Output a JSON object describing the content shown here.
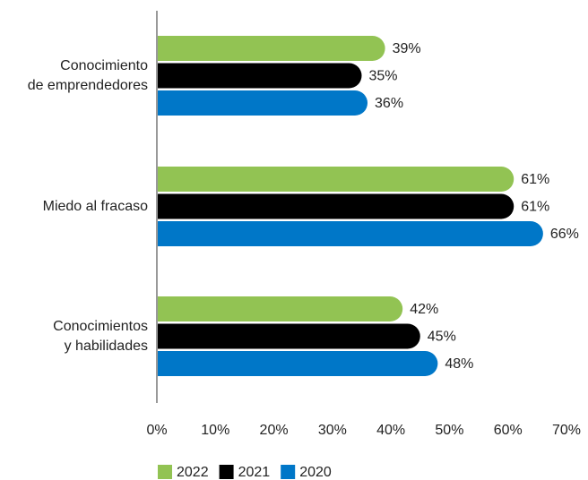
{
  "chart_data": {
    "type": "hbar",
    "categories": [
      "Conocimiento\nde emprendedores",
      "Miedo al fracaso",
      "Conocimientos\ny habilidades"
    ],
    "series": [
      {
        "name": "2022",
        "color": "#92c353",
        "values": [
          39,
          61,
          42
        ],
        "value_labels": [
          "39%",
          "61%",
          "42%"
        ]
      },
      {
        "name": "2021",
        "color": "#000000",
        "values": [
          35,
          61,
          45
        ],
        "value_labels": [
          "35%",
          "61%",
          "45%"
        ]
      },
      {
        "name": "2020",
        "color": "#0077c8",
        "values": [
          36,
          66,
          48
        ],
        "value_labels": [
          "36%",
          "66%",
          "48%"
        ]
      }
    ],
    "xlim": [
      0,
      70
    ],
    "xticks": [
      {
        "value": 0,
        "label": "0%"
      },
      {
        "value": 10,
        "label": "10%"
      },
      {
        "value": 20,
        "label": "20%"
      },
      {
        "value": 30,
        "label": "30%"
      },
      {
        "value": 40,
        "label": "40%"
      },
      {
        "value": 50,
        "label": "50%"
      },
      {
        "value": 60,
        "label": "60%"
      },
      {
        "value": 70,
        "label": "70%"
      }
    ],
    "legend": "bottom"
  }
}
